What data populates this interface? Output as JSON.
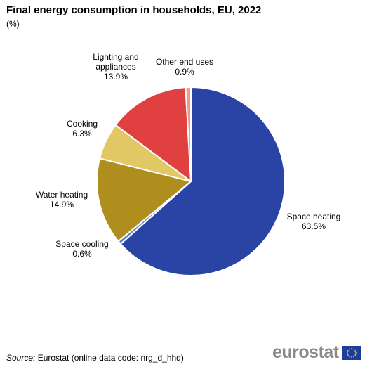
{
  "header": {
    "title": "Final energy consumption in households, EU, 2022",
    "subtitle": "(%)"
  },
  "chart_data": {
    "type": "pie",
    "start_angle_deg": 0,
    "direction": "clockwise",
    "slices": [
      {
        "label": "Space heating",
        "value": 63.5,
        "value_text": "63.5%",
        "color": "#2a44a6"
      },
      {
        "label": "Space cooling",
        "value": 0.6,
        "value_text": "0.6%",
        "color": "#5b7fc4"
      },
      {
        "label": "Water heating",
        "value": 14.9,
        "value_text": "14.9%",
        "color": "#b08e1e"
      },
      {
        "label": "Cooking",
        "value": 6.3,
        "value_text": "6.3%",
        "color": "#e2c864"
      },
      {
        "label": "Lighting and appliances",
        "value": 13.9,
        "value_text": "13.9%",
        "color": "#e04040"
      },
      {
        "label": "Other end uses",
        "value": 0.9,
        "value_text": "0.9%",
        "color": "#f09a8a"
      }
    ]
  },
  "footer": {
    "source_label": "Source:",
    "source_text": "Eurostat (online data code: nrg_d_hhq)",
    "logo_text": "eurostat",
    "logo_icon": "eu-flag-icon"
  }
}
